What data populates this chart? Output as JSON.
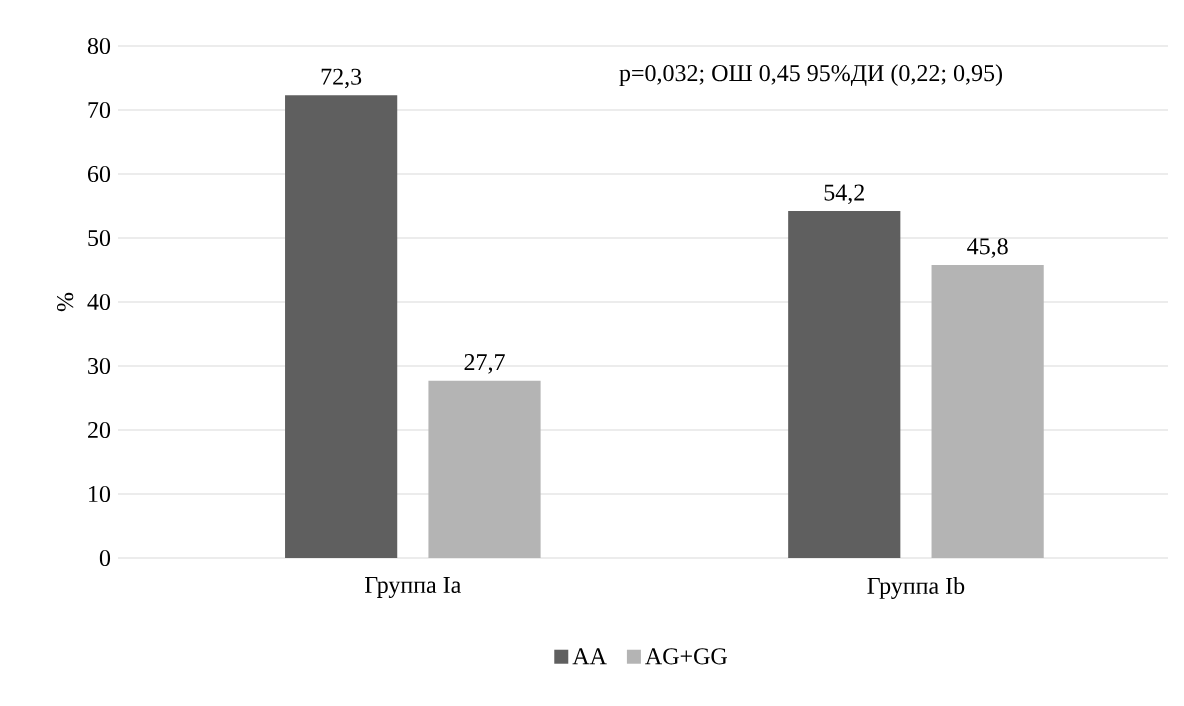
{
  "chart_data": {
    "type": "bar",
    "ylabel": "%",
    "categories": [
      "Группа Ia",
      "Группа Ib"
    ],
    "series": [
      {
        "name": "AA",
        "color": "#5f5f5f",
        "values": [
          72.3,
          54.2
        ],
        "value_labels": [
          "72,3",
          "54,2"
        ]
      },
      {
        "name": "AG+GG",
        "color": "#b4b4b4",
        "values": [
          27.7,
          45.8
        ],
        "value_labels": [
          "27,7",
          "45,8"
        ]
      }
    ],
    "ylim": [
      0,
      80
    ],
    "yticks": [
      0,
      10,
      20,
      30,
      40,
      50,
      60,
      70,
      80
    ],
    "grid": "y",
    "legend": "bottom",
    "annotations": [
      "p=0,032; ОШ 0,45 95%ДИ (0,22; 0,95)"
    ]
  }
}
